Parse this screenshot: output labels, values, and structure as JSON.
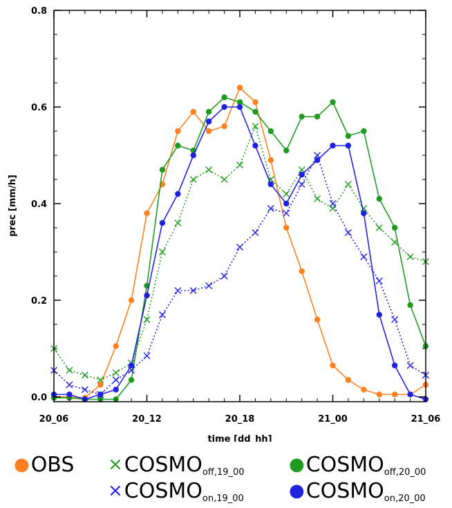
{
  "chart_data": {
    "type": "line",
    "xlabel": "time [dd_hh]",
    "ylabel": "prec [mm/h]",
    "x_tick_labels": [
      "20_06",
      "20_12",
      "20_18",
      "21_00",
      "21_06"
    ],
    "y_tick_labels": [
      "0.0",
      "0.2",
      "0.4",
      "0.6",
      "0.8"
    ],
    "xlim": [
      0,
      24
    ],
    "ylim": [
      0,
      0.8
    ],
    "x_hours_from_20_06": [
      0,
      1,
      2,
      3,
      4,
      5,
      6,
      7,
      8,
      9,
      10,
      11,
      12,
      13,
      14,
      15,
      16,
      17,
      18,
      19,
      20,
      21,
      22,
      23,
      24
    ],
    "series": [
      {
        "name": "OBS",
        "color": "#ff8020",
        "marker": "filled-circle",
        "line": "solid",
        "values": [
          0.0,
          0.0,
          -0.002,
          0.025,
          0.105,
          0.2,
          0.38,
          0.44,
          0.55,
          0.59,
          0.55,
          0.56,
          0.64,
          0.61,
          0.49,
          0.35,
          0.26,
          0.16,
          0.065,
          0.035,
          0.015,
          0.005,
          0.005,
          0.005,
          0.025
        ]
      },
      {
        "name": "COSMO_off,19_00",
        "color": "#209a20",
        "marker": "x",
        "line": "dotted",
        "values": [
          0.1,
          0.055,
          0.045,
          0.035,
          0.05,
          0.07,
          0.16,
          0.3,
          0.36,
          0.45,
          0.47,
          0.45,
          0.48,
          0.56,
          0.45,
          0.42,
          0.47,
          0.41,
          0.39,
          0.44,
          0.39,
          0.35,
          0.32,
          0.29,
          0.28
        ]
      },
      {
        "name": "COSMO_off,20_00",
        "color": "#209a20",
        "marker": "filled-circle",
        "line": "solid",
        "values": [
          -0.002,
          -0.002,
          -0.005,
          -0.005,
          -0.005,
          0.035,
          0.23,
          0.47,
          0.52,
          0.51,
          0.59,
          0.62,
          0.61,
          0.59,
          0.55,
          0.51,
          0.58,
          0.58,
          0.61,
          0.54,
          0.55,
          0.41,
          0.35,
          0.19,
          0.105
        ]
      },
      {
        "name": "COSMO_on,19_00",
        "color": "#2020e0",
        "marker": "x",
        "line": "dotted",
        "values": [
          0.055,
          0.025,
          0.015,
          0.005,
          0.035,
          0.055,
          0.085,
          0.17,
          0.22,
          0.22,
          0.23,
          0.25,
          0.31,
          0.34,
          0.39,
          0.38,
          0.44,
          0.5,
          0.4,
          0.34,
          0.29,
          0.24,
          0.16,
          0.065,
          0.045
        ]
      },
      {
        "name": "COSMO_on,20_00",
        "color": "#2020e0",
        "marker": "filled-circle",
        "line": "solid",
        "values": [
          0.005,
          0.005,
          -0.005,
          0.005,
          0.015,
          0.065,
          0.21,
          0.36,
          0.42,
          0.5,
          0.57,
          0.6,
          0.6,
          0.52,
          0.44,
          0.4,
          0.46,
          0.49,
          0.52,
          0.52,
          0.38,
          0.17,
          0.065,
          0.005,
          -0.005
        ]
      }
    ],
    "grid": false,
    "legend_position": "bottom"
  },
  "legend": {
    "obs": {
      "marker": "●",
      "color": "#ff8020",
      "text": "OBS"
    },
    "off19": {
      "marker": "×",
      "color": "#209a20",
      "text": "COSMO",
      "sub": "off,19_00"
    },
    "off20": {
      "marker": "●",
      "color": "#209a20",
      "text": "COSMO",
      "sub": "off,20_00"
    },
    "on19": {
      "marker": "×",
      "color": "#2020e0",
      "text": "COSMO",
      "sub": "on,19_00"
    },
    "on20": {
      "marker": "●",
      "color": "#2020e0",
      "text": "COSMO",
      "sub": "on,20_00"
    }
  }
}
